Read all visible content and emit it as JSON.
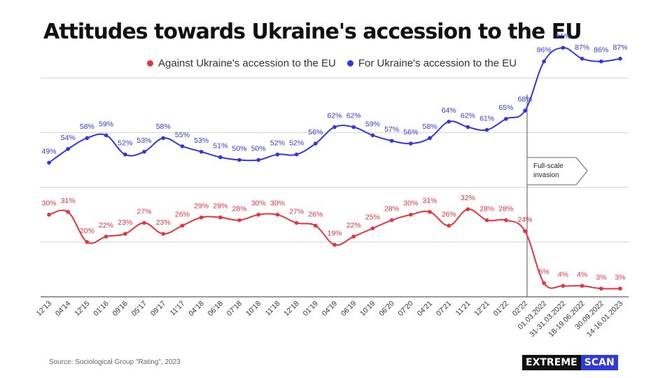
{
  "chart_data": {
    "type": "line",
    "title": "Attitudes towards Ukraine's accession to the EU",
    "categories": [
      "12'13",
      "04'14",
      "12'15",
      "01'16",
      "09'16",
      "05'17",
      "09'17",
      "11'17",
      "04'18",
      "06'18",
      "07'18",
      "10'18",
      "11'18",
      "12'18",
      "01'19",
      "04'19",
      "06'19",
      "10'19",
      "06'20",
      "07'20",
      "04'21",
      "07'21",
      "11'21",
      "12'21",
      "01'22",
      "02'22",
      "01.03.2022",
      "31-31.03.2022",
      "18-19.06.2022",
      "30.09.2022",
      "14-16.01.2023"
    ],
    "series": [
      {
        "name": "Against Ukraine's accession to the EU",
        "color": "#e8323c",
        "values": [
          30,
          31,
          20,
          22,
          23,
          27,
          23,
          26,
          29,
          29,
          28,
          30,
          30,
          27,
          26,
          19,
          22,
          25,
          28,
          30,
          31,
          26,
          32,
          28,
          28,
          24,
          5,
          4,
          4,
          3,
          3
        ],
        "labels": [
          "30%",
          "31%",
          "20%",
          "22%",
          "23%",
          "27%",
          "23%",
          "26%",
          "29%",
          "29%",
          "28%",
          "30%",
          "30%",
          "27%",
          "26%",
          "19%",
          "22%",
          "25%",
          "28%",
          "30%",
          "31%",
          "26%",
          "32%",
          "28%",
          "28%",
          "24%",
          "5%",
          "4%",
          "4%",
          "3%",
          "3%"
        ]
      },
      {
        "name": "For Ukraine's accession to the EU",
        "color": "#3037e0",
        "values": [
          49,
          54,
          58,
          59,
          52,
          53,
          58,
          55,
          53,
          51,
          50,
          50,
          52,
          52,
          56,
          62,
          62,
          59,
          57,
          56,
          58,
          64,
          62,
          61,
          65,
          68,
          86,
          91,
          87,
          86,
          87
        ],
        "labels": [
          "49%",
          "54%",
          "58%",
          "59%",
          "52%",
          "53%",
          "58%",
          "55%",
          "53%",
          "51%",
          "50%",
          "50%",
          "52%",
          "52%",
          "56%",
          "62%",
          "62%",
          "59%",
          "57%",
          "56%",
          "58%",
          "64%",
          "62%",
          "61%",
          "65%",
          "68%",
          "86%",
          "91%",
          "87%",
          "86%",
          "87%"
        ]
      }
    ],
    "ylim": [
      0,
      100
    ],
    "grid": true,
    "legend_position": "top",
    "annotation": {
      "text_line1": "Full-scale",
      "text_line2": "invasion",
      "at_category": "02'22"
    }
  },
  "footer": {
    "source": "Source: Sociological Group \"Rating\", 2023",
    "brand_part1": "EXTREME",
    "brand_part2": "SCAN"
  }
}
